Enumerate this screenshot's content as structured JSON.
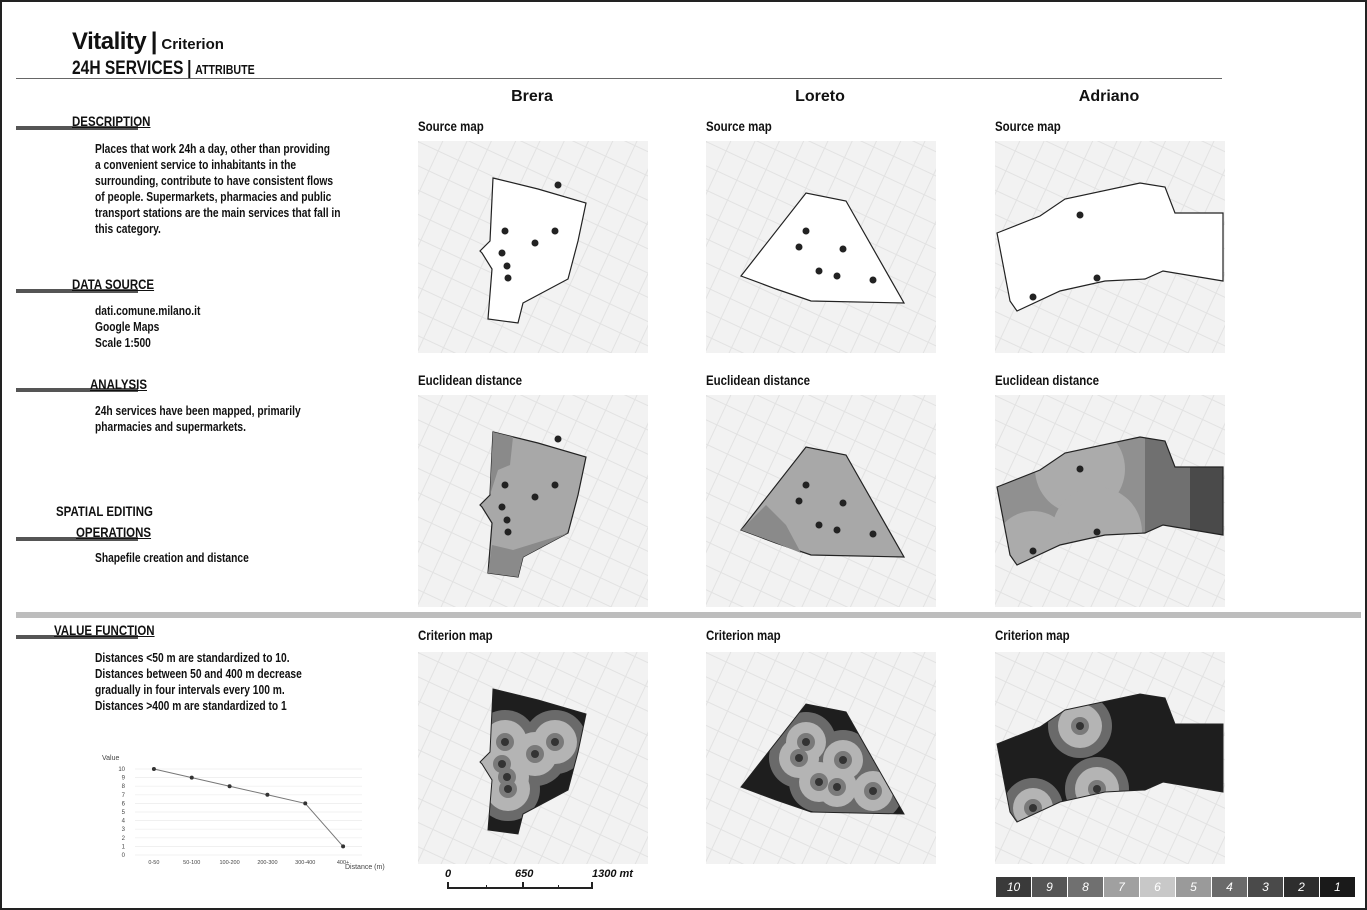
{
  "header": {
    "title": "Vitality",
    "title_suffix": "Criterion",
    "subtitle": "24H SERVICES",
    "subtitle_suffix": "ATTRIBUTE",
    "separator": "|"
  },
  "columns": [
    "Brera",
    "Loreto",
    "Adriano"
  ],
  "map_labels": {
    "source": "Source map",
    "euclidean": "Euclidean distance",
    "criterion": "Criterion map"
  },
  "sections": {
    "description": {
      "title": "DESCRIPTION",
      "lines": [
        "Places that work 24h a day, other than providing",
        "a convenient service to inhabitants in the",
        "surrounding, contribute to have consistent flows",
        "of people. Supermarkets, pharmacies and public",
        "transport stations are the main services that fall in",
        "this category."
      ]
    },
    "data_source": {
      "title": "DATA SOURCE",
      "lines": [
        "dati.comune.milano.it",
        "Google Maps",
        "Scale 1:500"
      ]
    },
    "analysis": {
      "title": "ANALYSIS",
      "lines": [
        "24h services have been mapped, primarily",
        "pharmacies and supermarkets."
      ]
    },
    "spatial": {
      "title_line1": "SPATIAL EDITING",
      "title_line2": "OPERATIONS",
      "lines": [
        "Shapefile creation and distance"
      ]
    },
    "value_function": {
      "title": "VALUE FUNCTION",
      "lines": [
        "Distances <50 m are standardized to 10.",
        "Distances between 50 and 400 m decrease",
        "gradually in four intervals every 100 m.",
        "Distances >400 m are standardized to 1"
      ]
    }
  },
  "chart_data": {
    "type": "line",
    "ylabel": "Value",
    "xlabel": "Distance (m)",
    "categories": [
      "0-50",
      "50-100",
      "100-200",
      "200-300",
      "300-400",
      "400+"
    ],
    "values": [
      10,
      9,
      8,
      7,
      6,
      1
    ],
    "yticks": [
      0,
      1,
      2,
      3,
      4,
      5,
      6,
      7,
      8,
      9,
      10
    ],
    "ylim": [
      0,
      10
    ],
    "grid": true
  },
  "scale_bar": {
    "labels": [
      "0",
      "650",
      "1300 mt"
    ]
  },
  "legend": {
    "values": [
      "10",
      "9",
      "8",
      "7",
      "6",
      "5",
      "4",
      "3",
      "2",
      "1"
    ],
    "colors": [
      "#3a3a3a",
      "#555555",
      "#707070",
      "#a0a0a0",
      "#c8c8c8",
      "#9a9a9a",
      "#6a6a6a",
      "#4a4a4a",
      "#2e2e2e",
      "#1a1a1a"
    ]
  }
}
